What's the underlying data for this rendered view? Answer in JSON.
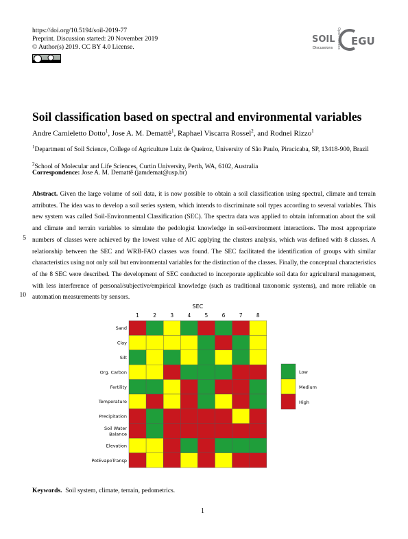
{
  "header": {
    "doi": "https://doi.org/10.5194/soil-2019-77",
    "preprint": "Preprint. Discussion started: 20 November 2019",
    "license": "© Author(s) 2019. CC BY 4.0 License."
  },
  "logo": {
    "journal": "SOIL",
    "subtitle": "Discussions",
    "open_access": "Open Access",
    "publisher": "EGU"
  },
  "title": "Soil classification based on spectral and environmental variables",
  "authors": [
    {
      "name": "Andre Carnieletto Dotto",
      "affiliation": "1",
      "separator": ", "
    },
    {
      "name": "Jose A. M. Demattê",
      "affiliation": "1",
      "separator": ", "
    },
    {
      "name": "Raphael Viscarra Rossel",
      "affiliation": "2",
      "separator": ", and "
    },
    {
      "name": "Rodnei Rizzo",
      "affiliation": "1"
    }
  ],
  "affiliations": [
    {
      "mark": "1",
      "text": "Department of Soil Science, College of Agriculture Luiz de Queiroz, University of São Paulo, Piracicaba, SP, 13418-900, Brazil"
    },
    {
      "mark": "2",
      "text": "School of Molecular and Life Sciences, Curtin University, Perth, WA, 6102, Australia"
    }
  ],
  "correspondence": {
    "label": "Correspondence:",
    "text": "Jose A. M. Demattê (jamdemat@usp.br)"
  },
  "abstract": {
    "label": "Abstract.",
    "text": "Given the large volume of soil data, it is now possible to obtain a soil classification using spectral, climate and terrain attributes. The idea was to develop a soil series system, which intends to discriminate soil types according to several variables. This new system was called Soil-Environmental Classification (SEC). The spectra data was applied to obtain information about the soil and climate and terrain variables to simulate the pedologist knowledge in soil-environment interactions. The most appropriate numbers of classes were achieved by the lowest value of AIC applying the clusters analysis, which was defined with 8 classes. A relationship between the SEC and WRB-FAO classes was found. The SEC facilitated the identification of groups with similar characteristics using not only soil but environmental variables for the distinction of the classes. Finally, the conceptual characteristics of the 8 SEC were described. The development of SEC conducted to incorporate applicable soil data for agricultural management, with less interference of personal/subjective/empirical knowledge (such as traditional taxonomic systems), and more reliable on automation measurements by sensors."
  },
  "line_numbers": [
    5,
    10
  ],
  "figure": {
    "type": "heatmap",
    "title": "SEC",
    "columns": [
      1,
      2,
      3,
      4,
      5,
      6,
      7,
      8
    ],
    "rows": [
      "Sand",
      "Clay",
      "Silt",
      "Org. Carbon",
      "Fertility",
      "Temperature",
      "Precipitation",
      "Soil Water Balance",
      "Elevation",
      "PotEvapoTransp"
    ],
    "legend": [
      {
        "name": "Low",
        "color": "#1f9e3a"
      },
      {
        "name": "Medium",
        "color": "#ffff00"
      },
      {
        "name": "High",
        "color": "#c8171e"
      }
    ],
    "cells": [
      [
        2,
        0,
        1,
        0,
        2,
        0,
        2,
        1
      ],
      [
        1,
        1,
        1,
        1,
        0,
        2,
        0,
        1
      ],
      [
        0,
        1,
        0,
        1,
        0,
        1,
        0,
        1
      ],
      [
        1,
        1,
        2,
        0,
        0,
        0,
        2,
        2
      ],
      [
        0,
        0,
        1,
        2,
        0,
        2,
        2,
        0
      ],
      [
        1,
        2,
        1,
        2,
        0,
        1,
        2,
        0
      ],
      [
        2,
        0,
        2,
        2,
        2,
        2,
        1,
        2
      ],
      [
        2,
        0,
        2,
        2,
        2,
        2,
        2,
        2
      ],
      [
        1,
        1,
        2,
        0,
        2,
        0,
        0,
        0
      ],
      [
        2,
        1,
        2,
        1,
        2,
        1,
        2,
        2
      ]
    ]
  },
  "keywords": {
    "label": "Keywords.",
    "text": "Soil system, climate, terrain, pedometrics."
  },
  "page_number": 1
}
